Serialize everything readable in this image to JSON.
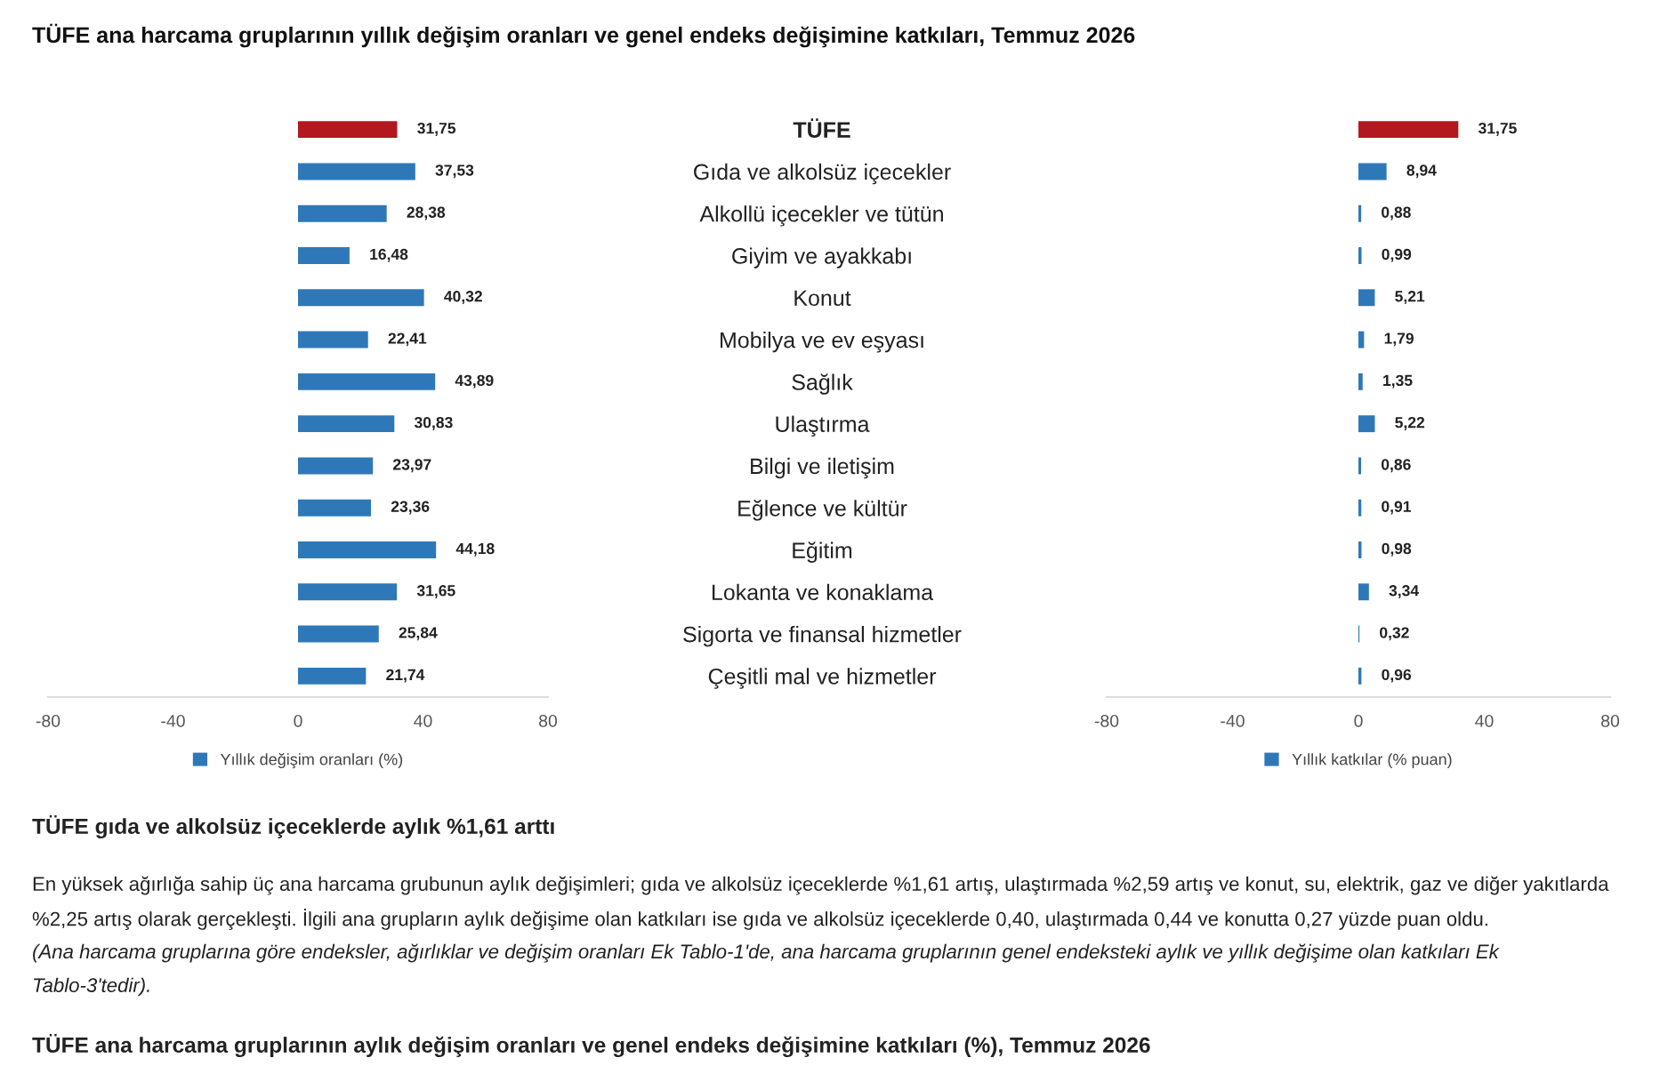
{
  "chart_data": [
    {
      "type": "bar",
      "orientation": "horizontal",
      "title": "TÜFE ana harcama gruplarının yıllık değişim oranları ve genel endeks değişimine katkıları, Temmuz 2026",
      "categories": [
        "TÜFE",
        "Gıda ve alkolsüz içecekler",
        "Alkollü içecekler ve tütün",
        "Giyim ve ayakkabı",
        "Konut",
        "Mobilya ve ev eşyası",
        "Sağlık",
        "Ulaştırma",
        "Bilgi ve iletişim",
        "Eğlence ve kültür",
        "Eğitim",
        "Lokanta ve konaklama",
        "Sigorta ve finansal hizmetler",
        "Çeşitli mal ve hizmetler"
      ],
      "series": [
        {
          "name": "Yıllık değişim oranları (%)",
          "color": "#2f78b8",
          "colors": [
            "#b2181f",
            "#2f78b8",
            "#2f78b8",
            "#2f78b8",
            "#2f78b8",
            "#2f78b8",
            "#2f78b8",
            "#2f78b8",
            "#2f78b8",
            "#2f78b8",
            "#2f78b8",
            "#2f78b8",
            "#2f78b8",
            "#2f78b8"
          ],
          "values": [
            31.75,
            37.53,
            28.38,
            16.48,
            40.32,
            22.41,
            43.89,
            30.83,
            23.97,
            23.36,
            44.18,
            31.65,
            25.84,
            21.74
          ],
          "value_labels": [
            "31,75",
            "37,53",
            "28,38",
            "16,48",
            "40,32",
            "22,41",
            "43,89",
            "30,83",
            "23,97",
            "23,36",
            "44,18",
            "31,65",
            "25,84",
            "21,74"
          ]
        }
      ],
      "xlim": [
        -80,
        80
      ],
      "xticks": [
        -80,
        -40,
        0,
        40,
        80
      ],
      "legend": "bottom",
      "annotations": [
        "TÜFE gıda ve alkolsüz içeceklerde aylık %1,61 arttı",
        "En yüksek ağırlığa sahip üç ana harcama grubunun aylık değişimleri; gıda ve alkolsüz içeceklerde %1,61 artış, ulaştırmada %2,59 artış ve konut, su, elektrik, gaz ve diğer yakıtlarda %2,25 artış olarak gerçekleşti. İlgili ana grupların aylık değişime olan katkıları ise gıda ve alkolsüz içeceklerde 0,40, ulaştırmada 0,44 ve konutta 0,27 yüzde puan oldu.",
        "(Ana harcama gruplarına göre endeksler, ağırlıklar ve değişim oranları Ek Tablo-1'de, ana harcama gruplarının genel endeksteki aylık ve yıllık değişime olan katkıları Ek Tablo-3'tedir).",
        "TÜFE ana harcama gruplarının aylık değişim oranları ve genel endeks değişimine katkıları (%), Temmuz 2026"
      ]
    },
    {
      "type": "bar",
      "orientation": "horizontal",
      "categories": [
        null,
        null,
        null,
        null,
        null,
        null,
        null,
        null,
        null,
        null,
        null,
        null,
        null,
        null
      ],
      "series": [
        {
          "name": "Yıllık katkılar (% puan)",
          "color": "#2f78b8",
          "colors": [
            "#b2181f",
            "#2f78b8",
            "#2f78b8",
            "#2f78b8",
            "#2f78b8",
            "#2f78b8",
            "#2f78b8",
            "#2f78b8",
            "#2f78b8",
            "#2f78b8",
            "#2f78b8",
            "#2f78b8",
            "#2f78b8",
            "#2f78b8"
          ],
          "values": [
            31.75,
            8.94,
            0.88,
            0.99,
            5.21,
            1.79,
            1.35,
            5.22,
            0.86,
            0.91,
            0.98,
            3.34,
            0.32,
            0.96
          ],
          "value_labels": [
            "31,75",
            "8,94",
            "0,88",
            "0,99",
            "5,21",
            "1,79",
            "1,35",
            "5,22",
            "0,86",
            "0,91",
            "0,98",
            "3,34",
            "0,32",
            "0,96"
          ]
        }
      ],
      "xlim": [
        -80,
        80
      ],
      "xticks": [
        -80,
        -40,
        0,
        40,
        80
      ],
      "legend": "bottom"
    }
  ]
}
